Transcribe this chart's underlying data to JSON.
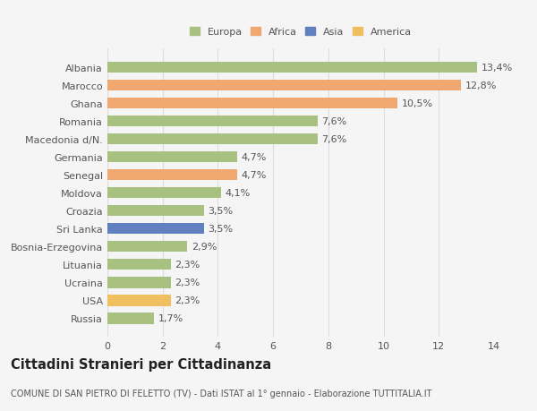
{
  "countries": [
    "Russia",
    "USA",
    "Ucraina",
    "Lituania",
    "Bosnia-Erzegovina",
    "Sri Lanka",
    "Croazia",
    "Moldova",
    "Senegal",
    "Germania",
    "Macedonia d/N.",
    "Romania",
    "Ghana",
    "Marocco",
    "Albania"
  ],
  "values": [
    1.7,
    2.3,
    2.3,
    2.3,
    2.9,
    3.5,
    3.5,
    4.1,
    4.7,
    4.7,
    7.6,
    7.6,
    10.5,
    12.8,
    13.4
  ],
  "labels": [
    "1,7%",
    "2,3%",
    "2,3%",
    "2,3%",
    "2,9%",
    "3,5%",
    "3,5%",
    "4,1%",
    "4,7%",
    "4,7%",
    "7,6%",
    "7,6%",
    "10,5%",
    "12,8%",
    "13,4%"
  ],
  "colors": [
    "#a8c080",
    "#f0c060",
    "#a8c080",
    "#a8c080",
    "#a8c080",
    "#6080c0",
    "#a8c080",
    "#a8c080",
    "#f0a870",
    "#a8c080",
    "#a8c080",
    "#a8c080",
    "#f0a870",
    "#f0a870",
    "#a8c080"
  ],
  "legend_labels": [
    "Europa",
    "Africa",
    "Asia",
    "America"
  ],
  "legend_colors": [
    "#a8c080",
    "#f0a870",
    "#6080c0",
    "#f0c060"
  ],
  "title": "Cittadini Stranieri per Cittadinanza",
  "subtitle": "COMUNE DI SAN PIETRO DI FELETTO (TV) - Dati ISTAT al 1° gennaio - Elaborazione TUTTITALIA.IT",
  "xlim": [
    0,
    14
  ],
  "xticks": [
    0,
    2,
    4,
    6,
    8,
    10,
    12,
    14
  ],
  "background_color": "#f5f5f5",
  "bar_height": 0.62,
  "grid_color": "#dddddd",
  "text_color": "#555555",
  "label_fontsize": 8,
  "tick_fontsize": 8,
  "title_fontsize": 10.5,
  "subtitle_fontsize": 7
}
